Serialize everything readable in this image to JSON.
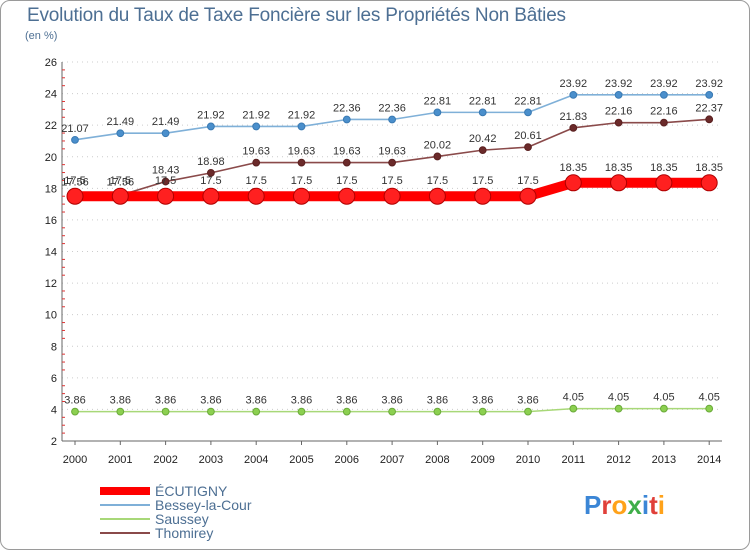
{
  "title": "Evolution du Taux de Taxe Foncière sur les Propriétés Non Bâties",
  "unit_label": "(en %)",
  "logo": "Proxiti",
  "chart_data": {
    "type": "line",
    "title": "Evolution du Taux de Taxe Foncière sur les Propriétés Non Bâties",
    "ylabel": "(en %)",
    "xlabel": "",
    "ylim": [
      2,
      26
    ],
    "yticks": [
      2,
      4,
      6,
      8,
      10,
      12,
      14,
      16,
      18,
      20,
      22,
      24,
      26
    ],
    "grid": true,
    "legend_position": "bottom-left",
    "categories": [
      "2000",
      "2001",
      "2002",
      "2003",
      "2004",
      "2005",
      "2006",
      "2007",
      "2008",
      "2009",
      "2010",
      "2011",
      "2012",
      "2013",
      "2014"
    ],
    "series": [
      {
        "name": "ÉCUTIGNY",
        "color": "#ff0000",
        "values": [
          17.5,
          17.5,
          17.5,
          17.5,
          17.5,
          17.5,
          17.5,
          17.5,
          17.5,
          17.5,
          17.5,
          18.35,
          18.35,
          18.35,
          18.35
        ],
        "labels": [
          "17.5",
          "17.5",
          "17.5",
          "17.5",
          "17.5",
          "17.5",
          "17.5",
          "17.5",
          "17.5",
          "17.5",
          "17.5",
          "18.35",
          "18.35",
          "18.35",
          "18.35"
        ]
      },
      {
        "name": "Bessey-la-Cour",
        "color": "#7fb0d8",
        "values": [
          21.07,
          21.49,
          21.49,
          21.92,
          21.92,
          21.92,
          22.36,
          22.36,
          22.81,
          22.81,
          22.81,
          23.92,
          23.92,
          23.92,
          23.92
        ],
        "labels": [
          "21.07",
          "21.49",
          "21.49",
          "21.92",
          "21.92",
          "21.92",
          "22.36",
          "22.36",
          "22.81",
          "22.81",
          "22.81",
          "23.92",
          "23.92",
          "23.92",
          "23.92"
        ]
      },
      {
        "name": "Saussey",
        "color": "#a8d878",
        "values": [
          3.86,
          3.86,
          3.86,
          3.86,
          3.86,
          3.86,
          3.86,
          3.86,
          3.86,
          3.86,
          3.86,
          4.05,
          4.05,
          4.05,
          4.05
        ],
        "labels": [
          "3.86",
          "3.86",
          "3.86",
          "3.86",
          "3.86",
          "3.86",
          "3.86",
          "3.86",
          "3.86",
          "3.86",
          "3.86",
          "4.05",
          "4.05",
          "4.05",
          "4.05"
        ]
      },
      {
        "name": "Thomirey",
        "color": "#8a4a4a",
        "values": [
          17.56,
          17.56,
          18.43,
          18.98,
          19.63,
          19.63,
          19.63,
          19.63,
          20.02,
          20.42,
          20.61,
          21.83,
          22.16,
          22.16,
          22.37
        ],
        "labels": [
          "17.56",
          "17.56",
          "18.43",
          "18.98",
          "19.63",
          "19.63",
          "19.63",
          "19.63",
          "20.02",
          "20.42",
          "20.61",
          "21.83",
          "22.16",
          "22.16",
          "22.37"
        ]
      }
    ]
  }
}
